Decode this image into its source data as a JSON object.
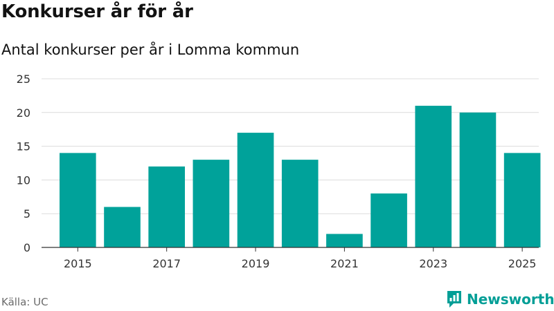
{
  "header": {
    "title": "Konkurser år för år",
    "subtitle": "Antal konkurser per år i Lomma kommun"
  },
  "footer": {
    "source": "Källa: UC",
    "brand": "Newsworthy",
    "brand_icon": "newsworthy-logo-icon"
  },
  "colors": {
    "bar": "#00a29a",
    "grid": "#dcdcdc",
    "axis": "#333333",
    "brand": "#009e96"
  },
  "chart_data": {
    "type": "bar",
    "title": "Konkurser år för år",
    "subtitle": "Antal konkurser per år i Lomma kommun",
    "xlabel": "",
    "ylabel": "",
    "categories": [
      "2015",
      "2016",
      "2017",
      "2018",
      "2019",
      "2020",
      "2021",
      "2022",
      "2023",
      "2024",
      "2025"
    ],
    "values": [
      14,
      6,
      12,
      13,
      17,
      13,
      2,
      8,
      21,
      20,
      14
    ],
    "x_tick_labels": [
      "2015",
      "2017",
      "2019",
      "2021",
      "2023",
      "2025"
    ],
    "y_ticks": [
      0,
      5,
      10,
      15,
      20,
      25
    ],
    "ylim": [
      0,
      25
    ],
    "grid": true,
    "legend": "none"
  }
}
